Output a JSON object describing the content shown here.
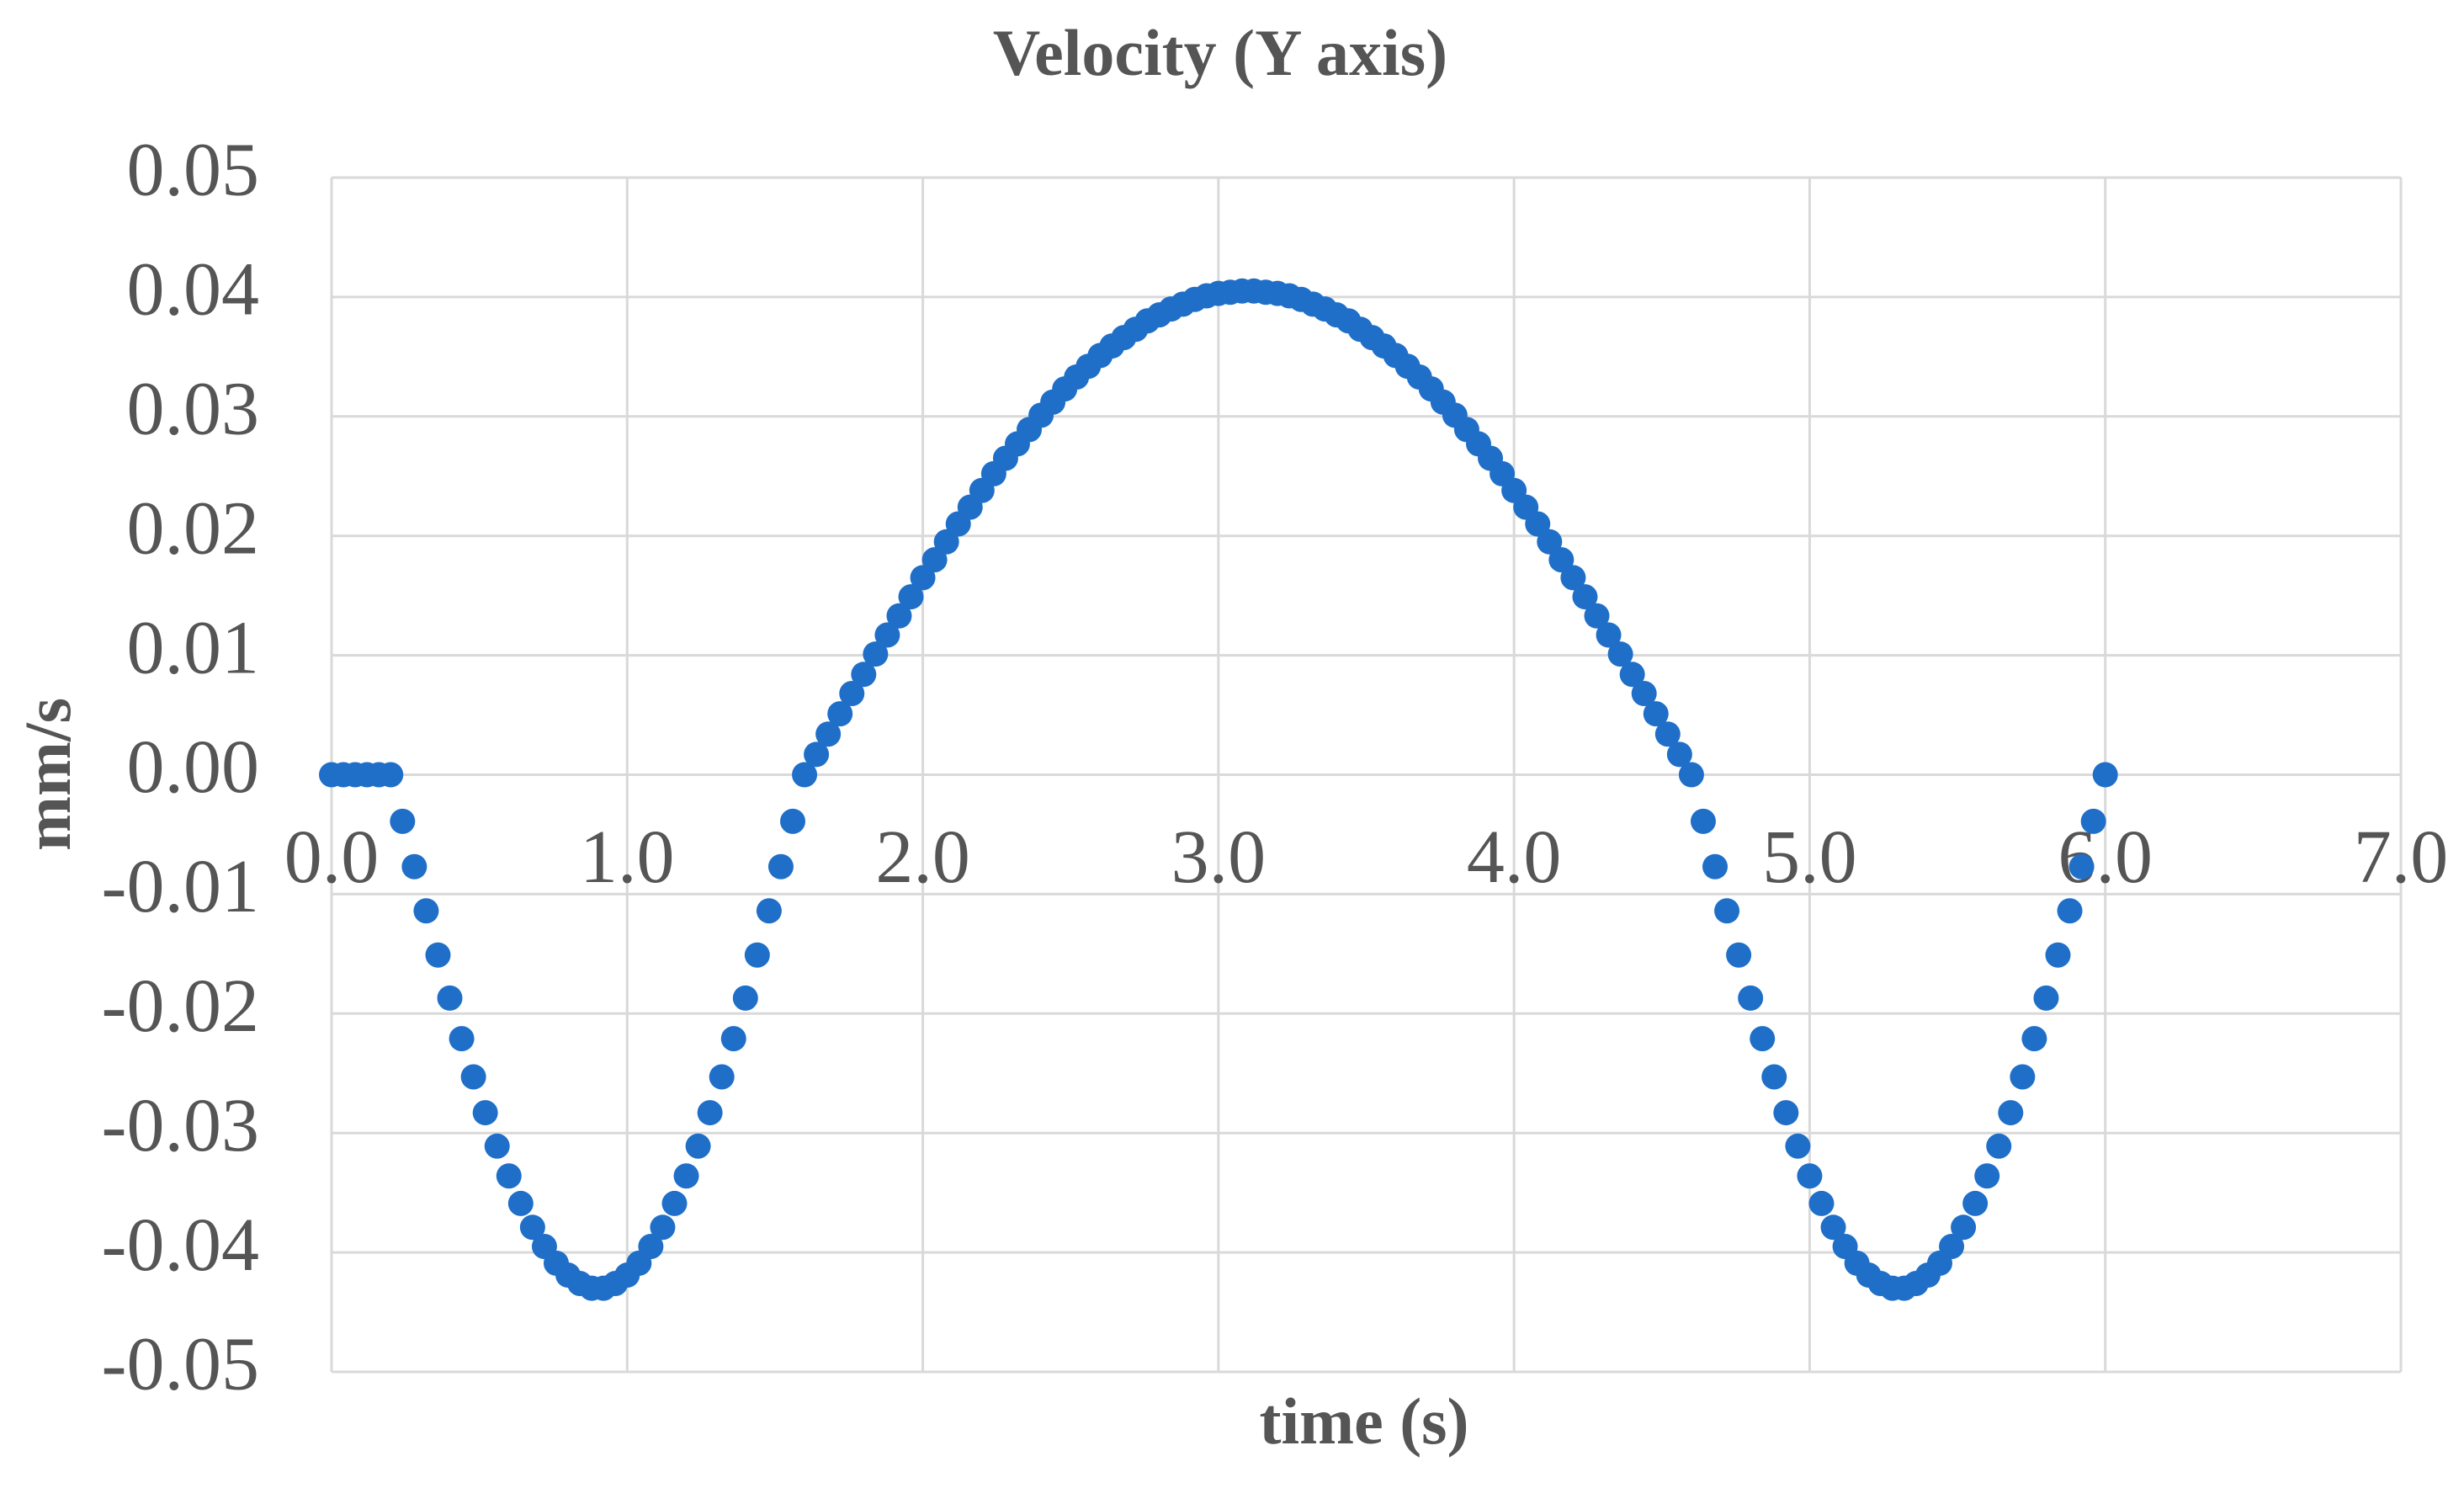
{
  "chart_data": {
    "type": "scatter",
    "title": "Velocity (Y axis)",
    "x_label": "time (s)",
    "y_label": "mm/s",
    "color": "#1f6fc9",
    "grid": true,
    "xlim": [
      0,
      7
    ],
    "xticks": [
      {
        "value": 0,
        "label": "0.0"
      },
      {
        "value": 1,
        "label": "1.0"
      },
      {
        "value": 2,
        "label": "2.0"
      },
      {
        "value": 3,
        "label": "3.0"
      },
      {
        "value": 4,
        "label": "4.0"
      },
      {
        "value": 5,
        "label": "5.0"
      },
      {
        "value": 6,
        "label": "6.0"
      },
      {
        "value": 7,
        "label": "7.0"
      }
    ],
    "ylim": [
      -0.05,
      0.05
    ],
    "yticks": [
      -0.05,
      -0.04,
      -0.03,
      -0.02,
      -0.01,
      {
        "value": 0,
        "label": "0.00"
      },
      0.01,
      0.02,
      0.03,
      0.04,
      0.05
    ],
    "x": [
      0,
      0.04,
      0.08,
      0.12,
      0.16,
      0.2,
      0.24,
      0.28,
      0.32,
      0.36,
      0.4,
      0.44,
      0.48,
      0.52,
      0.56,
      0.6,
      0.64,
      0.68,
      0.72,
      0.76,
      0.8,
      0.84,
      0.88,
      0.92,
      0.96,
      1.0,
      1.04,
      1.08,
      1.12,
      1.16,
      1.2,
      1.24,
      1.28,
      1.32,
      1.36,
      1.4,
      1.44,
      1.48,
      1.52,
      1.56,
      1.6,
      1.64,
      1.68,
      1.72,
      1.76,
      1.8,
      1.84,
      1.88,
      1.92,
      1.96,
      2.0,
      2.04,
      2.08,
      2.12,
      2.16,
      2.2,
      2.24,
      2.28,
      2.32,
      2.36,
      2.4,
      2.44,
      2.48,
      2.52,
      2.56,
      2.6,
      2.64,
      2.68,
      2.72,
      2.76,
      2.8,
      2.84,
      2.88,
      2.92,
      2.96,
      3.0,
      3.04,
      3.08,
      3.12,
      3.16,
      3.2,
      3.24,
      3.28,
      3.32,
      3.36,
      3.4,
      3.44,
      3.48,
      3.52,
      3.56,
      3.6,
      3.64,
      3.68,
      3.72,
      3.76,
      3.8,
      3.84,
      3.88,
      3.92,
      3.96,
      4.0,
      4.04,
      4.08,
      4.12,
      4.16,
      4.2,
      4.24,
      4.28,
      4.32,
      4.36,
      4.4,
      4.44,
      4.48,
      4.52,
      4.56,
      4.6,
      4.64,
      4.68,
      4.72,
      4.76,
      4.8,
      4.84,
      4.88,
      4.92,
      4.96,
      5.0,
      5.04,
      5.08,
      5.12,
      5.16,
      5.2,
      5.24,
      5.28,
      5.32,
      5.36,
      5.4,
      5.44,
      5.48,
      5.52,
      5.56,
      5.6,
      5.64,
      5.68,
      5.72,
      5.76,
      5.8,
      5.84,
      5.88,
      5.92,
      5.96,
      6.0
    ],
    "values": [
      0,
      0,
      0,
      0,
      0,
      0,
      -0.0039,
      -0.0077,
      -0.0114,
      -0.0151,
      -0.0187,
      -0.0221,
      -0.0253,
      -0.0283,
      -0.0311,
      -0.0336,
      -0.0359,
      -0.0379,
      -0.0395,
      -0.0409,
      -0.0419,
      -0.0426,
      -0.043,
      -0.043,
      -0.0426,
      -0.0419,
      -0.0409,
      -0.0395,
      -0.0379,
      -0.0359,
      -0.0336,
      -0.0311,
      -0.0283,
      -0.0253,
      -0.0221,
      -0.0187,
      -0.0151,
      -0.0114,
      -0.0077,
      -0.0039,
      0,
      0.0017,
      0.0034,
      0.0051,
      0.0068,
      0.0084,
      0.0101,
      0.0117,
      0.0133,
      0.0149,
      0.0165,
      0.018,
      0.0195,
      0.021,
      0.0224,
      0.0238,
      0.0252,
      0.0265,
      0.0277,
      0.0289,
      0.0301,
      0.0312,
      0.0323,
      0.0333,
      0.0342,
      0.0351,
      0.0359,
      0.0366,
      0.0373,
      0.038,
      0.0385,
      0.039,
      0.0394,
      0.0398,
      0.0401,
      0.0403,
      0.0404,
      0.0405,
      0.0405,
      0.0404,
      0.0403,
      0.0401,
      0.0398,
      0.0394,
      0.039,
      0.0385,
      0.038,
      0.0373,
      0.0366,
      0.0359,
      0.0351,
      0.0342,
      0.0333,
      0.0323,
      0.0312,
      0.0301,
      0.0289,
      0.0277,
      0.0265,
      0.0252,
      0.0238,
      0.0224,
      0.021,
      0.0195,
      0.018,
      0.0165,
      0.0149,
      0.0133,
      0.0117,
      0.0101,
      0.0084,
      0.0068,
      0.0051,
      0.0034,
      0.0017,
      0,
      -0.0039,
      -0.0077,
      -0.0114,
      -0.0151,
      -0.0187,
      -0.0221,
      -0.0253,
      -0.0283,
      -0.0311,
      -0.0336,
      -0.0359,
      -0.0379,
      -0.0395,
      -0.0409,
      -0.0419,
      -0.0426,
      -0.043,
      -0.043,
      -0.0426,
      -0.0419,
      -0.0409,
      -0.0395,
      -0.0379,
      -0.0359,
      -0.0336,
      -0.0311,
      -0.0283,
      -0.0253,
      -0.0221,
      -0.0187,
      -0.0151,
      -0.0114,
      -0.0077,
      -0.0039,
      0
    ]
  }
}
